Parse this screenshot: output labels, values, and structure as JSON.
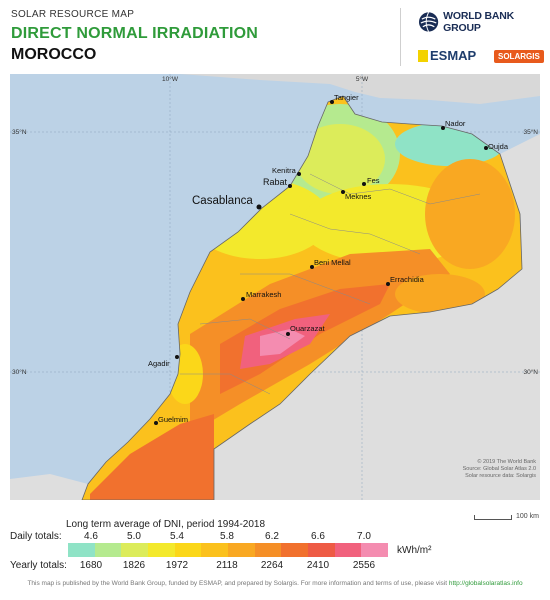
{
  "header": {
    "label": "SOLAR RESOURCE MAP",
    "title": "DIRECT NORMAL IRRADIATION",
    "country": "MOROCCO"
  },
  "logos": {
    "world_bank": "WORLD BANK GROUP",
    "esmap": "ESMAP",
    "solargis": "SOLARGIS"
  },
  "map": {
    "graticule": {
      "lon_10w": "10°W",
      "lon_5w": "5°W",
      "lat_35n_left": "35°N",
      "lat_35n_right": "35°N",
      "lat_30n_left": "30°N",
      "lat_30n_right": "30°N"
    },
    "cities": [
      {
        "name": "Tangier"
      },
      {
        "name": "Nador"
      },
      {
        "name": "Oujda"
      },
      {
        "name": "Kenitra"
      },
      {
        "name": "Rabat"
      },
      {
        "name": "Fes"
      },
      {
        "name": "Meknes"
      },
      {
        "name": "Casablanca"
      },
      {
        "name": "Beni Mellal"
      },
      {
        "name": "Errachidia"
      },
      {
        "name": "Marrakesh"
      },
      {
        "name": "Ouarzazat"
      },
      {
        "name": "Agadir"
      },
      {
        "name": "Guelmim"
      }
    ],
    "credits": [
      "© 2019 The World Bank",
      "Source: Global Solar Atlas 2.0",
      "Solar resource data: Solargis"
    ],
    "scale_label": "100 km"
  },
  "legend": {
    "title": "Long term average of DNI, period 1994-2018",
    "daily_label": "Daily totals:",
    "daily_ticks": [
      "4.6",
      "5.0",
      "5.4",
      "5.8",
      "6.2",
      "6.6",
      "7.0"
    ],
    "yearly_label": "Yearly totals:",
    "yearly_ticks": [
      "1680",
      "1826",
      "1972",
      "2118",
      "2264",
      "2410",
      "2556"
    ],
    "unit": "kWh/m²",
    "colors": [
      "#8fe3c6",
      "#b5ea8f",
      "#dcec5a",
      "#f3e92c",
      "#fbd719",
      "#fbc11d",
      "#f9a822",
      "#f58f27",
      "#f1712e",
      "#ee5b45",
      "#f1617d",
      "#f48cb0"
    ]
  },
  "footer": {
    "text": "This map is published by the World Bank Group, funded by ESMAP, and prepared by Solargis. For more information and terms of use, please visit",
    "link": "http://globalsolaratlas.info"
  }
}
